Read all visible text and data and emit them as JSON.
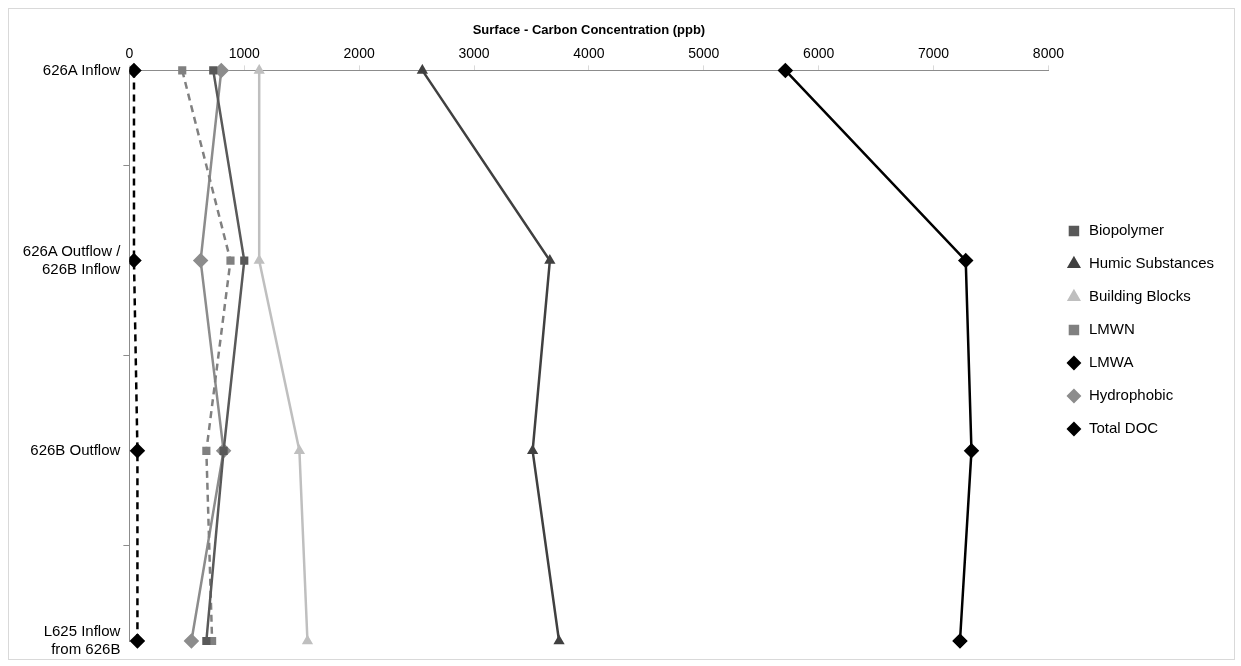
{
  "chart_data": {
    "type": "line",
    "orientation": "horizontal",
    "xlabel": "Surface - Carbon Concentration (ppb)",
    "categories": [
      "626A Inflow",
      "626A Outflow / 626B Inflow",
      "626B Outflow",
      "L625 Inflow from 626B"
    ],
    "xlim": [
      0,
      8000
    ],
    "xticks": [
      0,
      1000,
      2000,
      3000,
      4000,
      5000,
      6000,
      7000,
      8000
    ],
    "grid": false,
    "legend": "right",
    "series": [
      {
        "name": "Biopolymer",
        "color": "#595959",
        "marker": "square",
        "line_style": "solid",
        "values": [
          730,
          1000,
          820,
          670
        ]
      },
      {
        "name": "Humic Substances",
        "color": "#404040",
        "marker": "triangle",
        "line_style": "solid",
        "values": [
          2550,
          3660,
          3510,
          3740
        ]
      },
      {
        "name": "Building Blocks",
        "color": "#bfbfbf",
        "marker": "triangle",
        "line_style": "solid",
        "values": [
          1130,
          1130,
          1480,
          1550
        ]
      },
      {
        "name": "LMWN",
        "color": "#808080",
        "marker": "square",
        "line_style": "dashed",
        "values": [
          460,
          880,
          670,
          720
        ]
      },
      {
        "name": "LMWA",
        "color": "#000000",
        "marker": "diamond",
        "line_style": "dashed",
        "values": [
          40,
          40,
          70,
          70
        ]
      },
      {
        "name": "Hydrophobic",
        "color": "#8c8c8c",
        "marker": "diamond",
        "line_style": "solid",
        "values": [
          800,
          620,
          820,
          540
        ]
      },
      {
        "name": "Total DOC",
        "color": "#000000",
        "marker": "diamond",
        "line_style": "solid",
        "values": [
          5710,
          7280,
          7330,
          7230
        ]
      }
    ]
  }
}
